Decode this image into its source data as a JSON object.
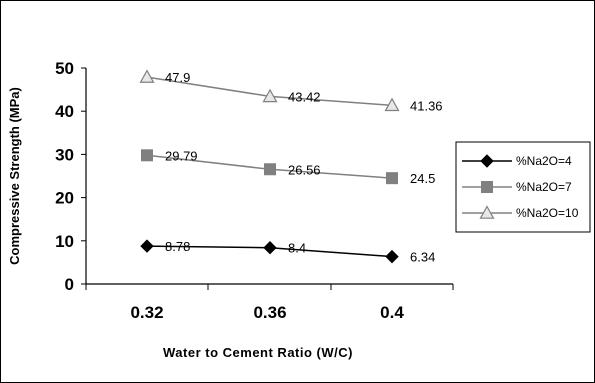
{
  "chart_data": {
    "type": "line",
    "xlabel": "Water to Cement Ratio (W/C)",
    "ylabel": "Compressive Strength (MPa)",
    "ylim": [
      0,
      50
    ],
    "yticks": [
      "0",
      "10",
      "20",
      "30",
      "40",
      "50"
    ],
    "categories": [
      "0.32",
      "0.36",
      "0.4"
    ],
    "grid": false,
    "legend_position": "right",
    "series": [
      {
        "name": "%Na2O=4",
        "marker": "diamond-filled",
        "color": "#000000",
        "values": [
          8.78,
          8.4,
          6.34
        ],
        "labels": [
          "8.78",
          "8.4",
          "6.34"
        ]
      },
      {
        "name": "%Na2O=7",
        "marker": "square-filled",
        "color": "#808080",
        "values": [
          29.79,
          26.56,
          24.5
        ],
        "labels": [
          "29.79",
          "26.56",
          "24.5"
        ]
      },
      {
        "name": "%Na2O=10",
        "marker": "triangle-open",
        "color": "#808080",
        "values": [
          47.9,
          43.42,
          41.36
        ],
        "labels": [
          "47.9",
          "43.42",
          "41.36"
        ]
      }
    ]
  }
}
